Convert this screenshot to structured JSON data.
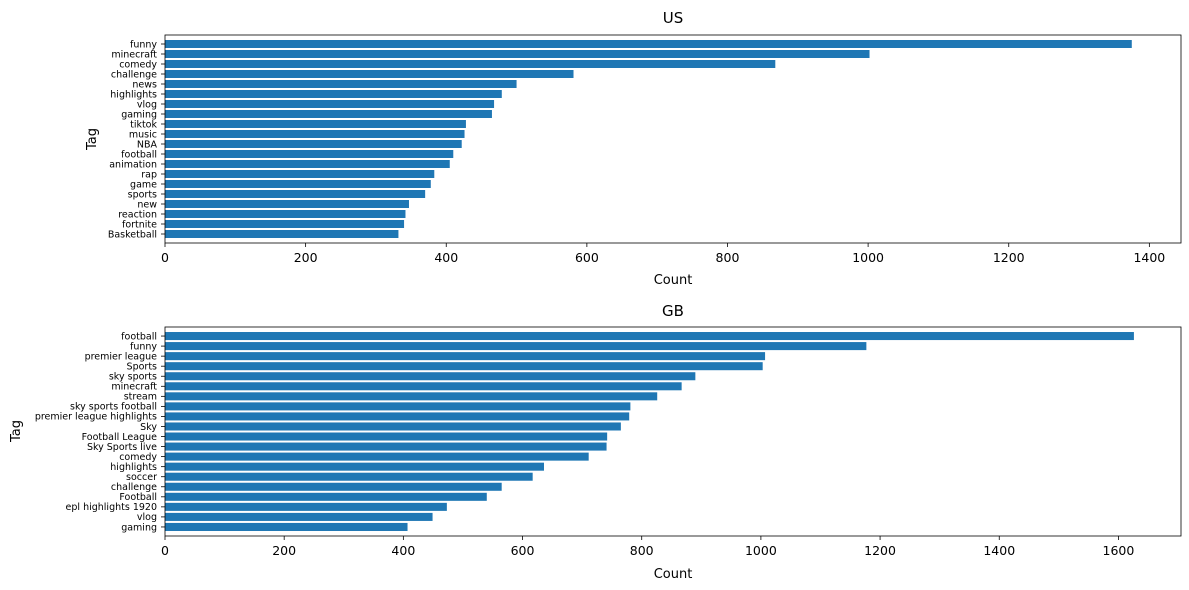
{
  "chart_data": [
    {
      "type": "bar",
      "orientation": "horizontal",
      "title": "US",
      "xlabel": "Count",
      "ylabel": "Tag",
      "xlim": [
        0,
        1445
      ],
      "xticks": [
        0,
        200,
        400,
        600,
        800,
        1000,
        1200,
        1400
      ],
      "color": "#1f77b4",
      "categories": [
        "funny",
        "minecraft",
        "comedy",
        "challenge",
        "news",
        "highlights",
        "vlog",
        "gaming",
        "tiktok",
        "music",
        "NBA",
        "football",
        "animation",
        "rap",
        "game",
        "sports",
        "new",
        "reaction",
        "fortnite",
        "Basketball"
      ],
      "values": [
        1375,
        1002,
        868,
        581,
        500,
        479,
        468,
        465,
        428,
        426,
        422,
        410,
        405,
        383,
        378,
        370,
        347,
        342,
        340,
        332
      ]
    },
    {
      "type": "bar",
      "orientation": "horizontal",
      "title": "GB",
      "xlabel": "Count",
      "ylabel": "Tag",
      "xlim": [
        0,
        1705
      ],
      "xticks": [
        0,
        200,
        400,
        600,
        800,
        1000,
        1200,
        1400,
        1600
      ],
      "color": "#1f77b4",
      "categories": [
        "football",
        "funny",
        "premier league",
        "Sports",
        "sky sports",
        "minecraft",
        "stream",
        "sky sports football",
        "premier league highlights",
        "Sky",
        "Football League",
        "Sky Sports live",
        "comedy",
        "highlights",
        "soccer",
        "challenge",
        "Football",
        "epl highlights 1920",
        "vlog",
        "gaming"
      ],
      "values": [
        1626,
        1177,
        1007,
        1003,
        890,
        867,
        826,
        781,
        779,
        765,
        742,
        741,
        711,
        636,
        617,
        565,
        540,
        473,
        449,
        407
      ]
    }
  ]
}
